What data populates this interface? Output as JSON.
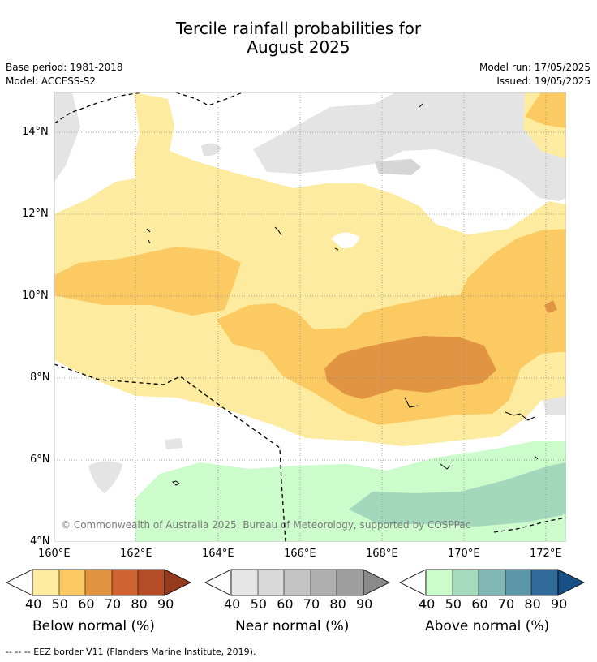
{
  "title": {
    "line1": "Tercile rainfall probabilities for",
    "line2": "August 2025"
  },
  "meta": {
    "base_period": "Base period: 1981-2018",
    "model": "Model: ACCESS-S2",
    "model_run": "Model run: 17/05/2025",
    "issued": "Issued: 19/05/2025"
  },
  "map": {
    "y_ticks": [
      "14°N",
      "12°N",
      "10°N",
      "8°N",
      "6°N",
      "4°N"
    ],
    "x_ticks": [
      "160°E",
      "162°E",
      "164°E",
      "166°E",
      "168°E",
      "170°E",
      "172°E"
    ],
    "copyright": "© Commonwealth of Australia 2025, Bureau of Meteorology, supported by COSPPac"
  },
  "colorbars": [
    {
      "label": "Below normal (%)",
      "colors": [
        "#fdeba0",
        "#fcca62",
        "#e19543",
        "#cf6331",
        "#b34c27",
        "#963a1e"
      ]
    },
    {
      "label": "Near normal (%)",
      "colors": [
        "#e6e6e6",
        "#d9d9d9",
        "#c4c4c4",
        "#b0b0b0",
        "#9e9e9e",
        "#8a8a8a"
      ]
    },
    {
      "label": "Above normal (%)",
      "colors": [
        "#ccfccc",
        "#a5dbbc",
        "#82b8b4",
        "#5b97a6",
        "#316999",
        "#184f85"
      ]
    }
  ],
  "colorbar_ticks": [
    "40",
    "50",
    "60",
    "70",
    "80",
    "90"
  ],
  "footer": "--  --  -- EEZ border V11 (Flanders Marine Institute, 2019)."
}
